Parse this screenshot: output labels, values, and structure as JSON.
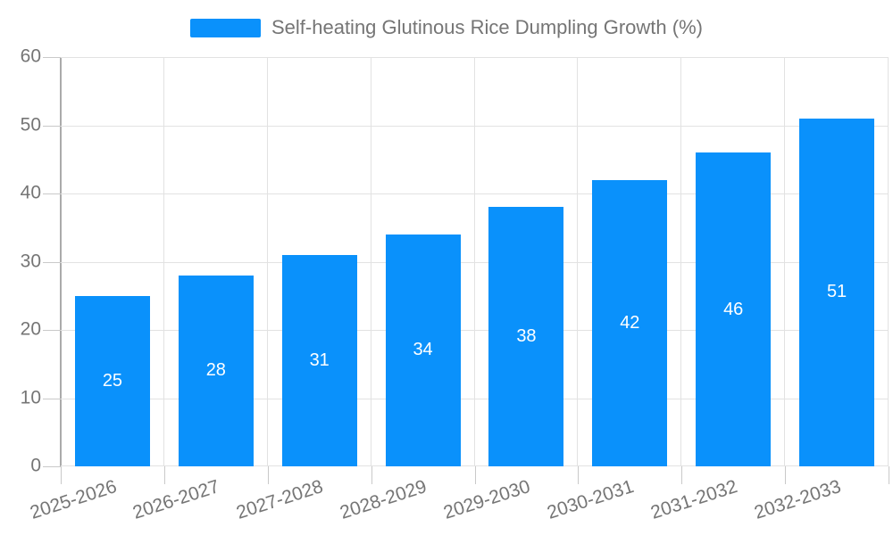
{
  "chart_data": {
    "type": "bar",
    "title": "Self-heating Glutinous Rice Dumpling Growth (%)",
    "legend_entries": [
      "Self-heating Glutinous Rice Dumpling Growth (%)"
    ],
    "legend_position": "top-center",
    "categories": [
      "2025-2026",
      "2026-2027",
      "2027-2028",
      "2028-2029",
      "2029-2030",
      "2030-2031",
      "2031-2032",
      "2032-2033"
    ],
    "values": [
      25,
      28,
      31,
      34,
      38,
      42,
      46,
      51
    ],
    "value_labels": [
      "25",
      "28",
      "31",
      "34",
      "38",
      "42",
      "46",
      "51"
    ],
    "xlabel": "",
    "ylabel": "",
    "ylim": [
      0,
      60
    ],
    "y_ticks": [
      0,
      10,
      20,
      30,
      40,
      50,
      60
    ],
    "grid": true,
    "x_label_rotation_deg": -18,
    "colors": {
      "bar": "#0a91fb",
      "value_text": "#ffffff",
      "axis_text": "#757575",
      "grid_line": "#e2e2e2",
      "axis_line": "#aaaaaa",
      "tick_line": "#c9c9c9",
      "background": "#ffffff"
    }
  }
}
